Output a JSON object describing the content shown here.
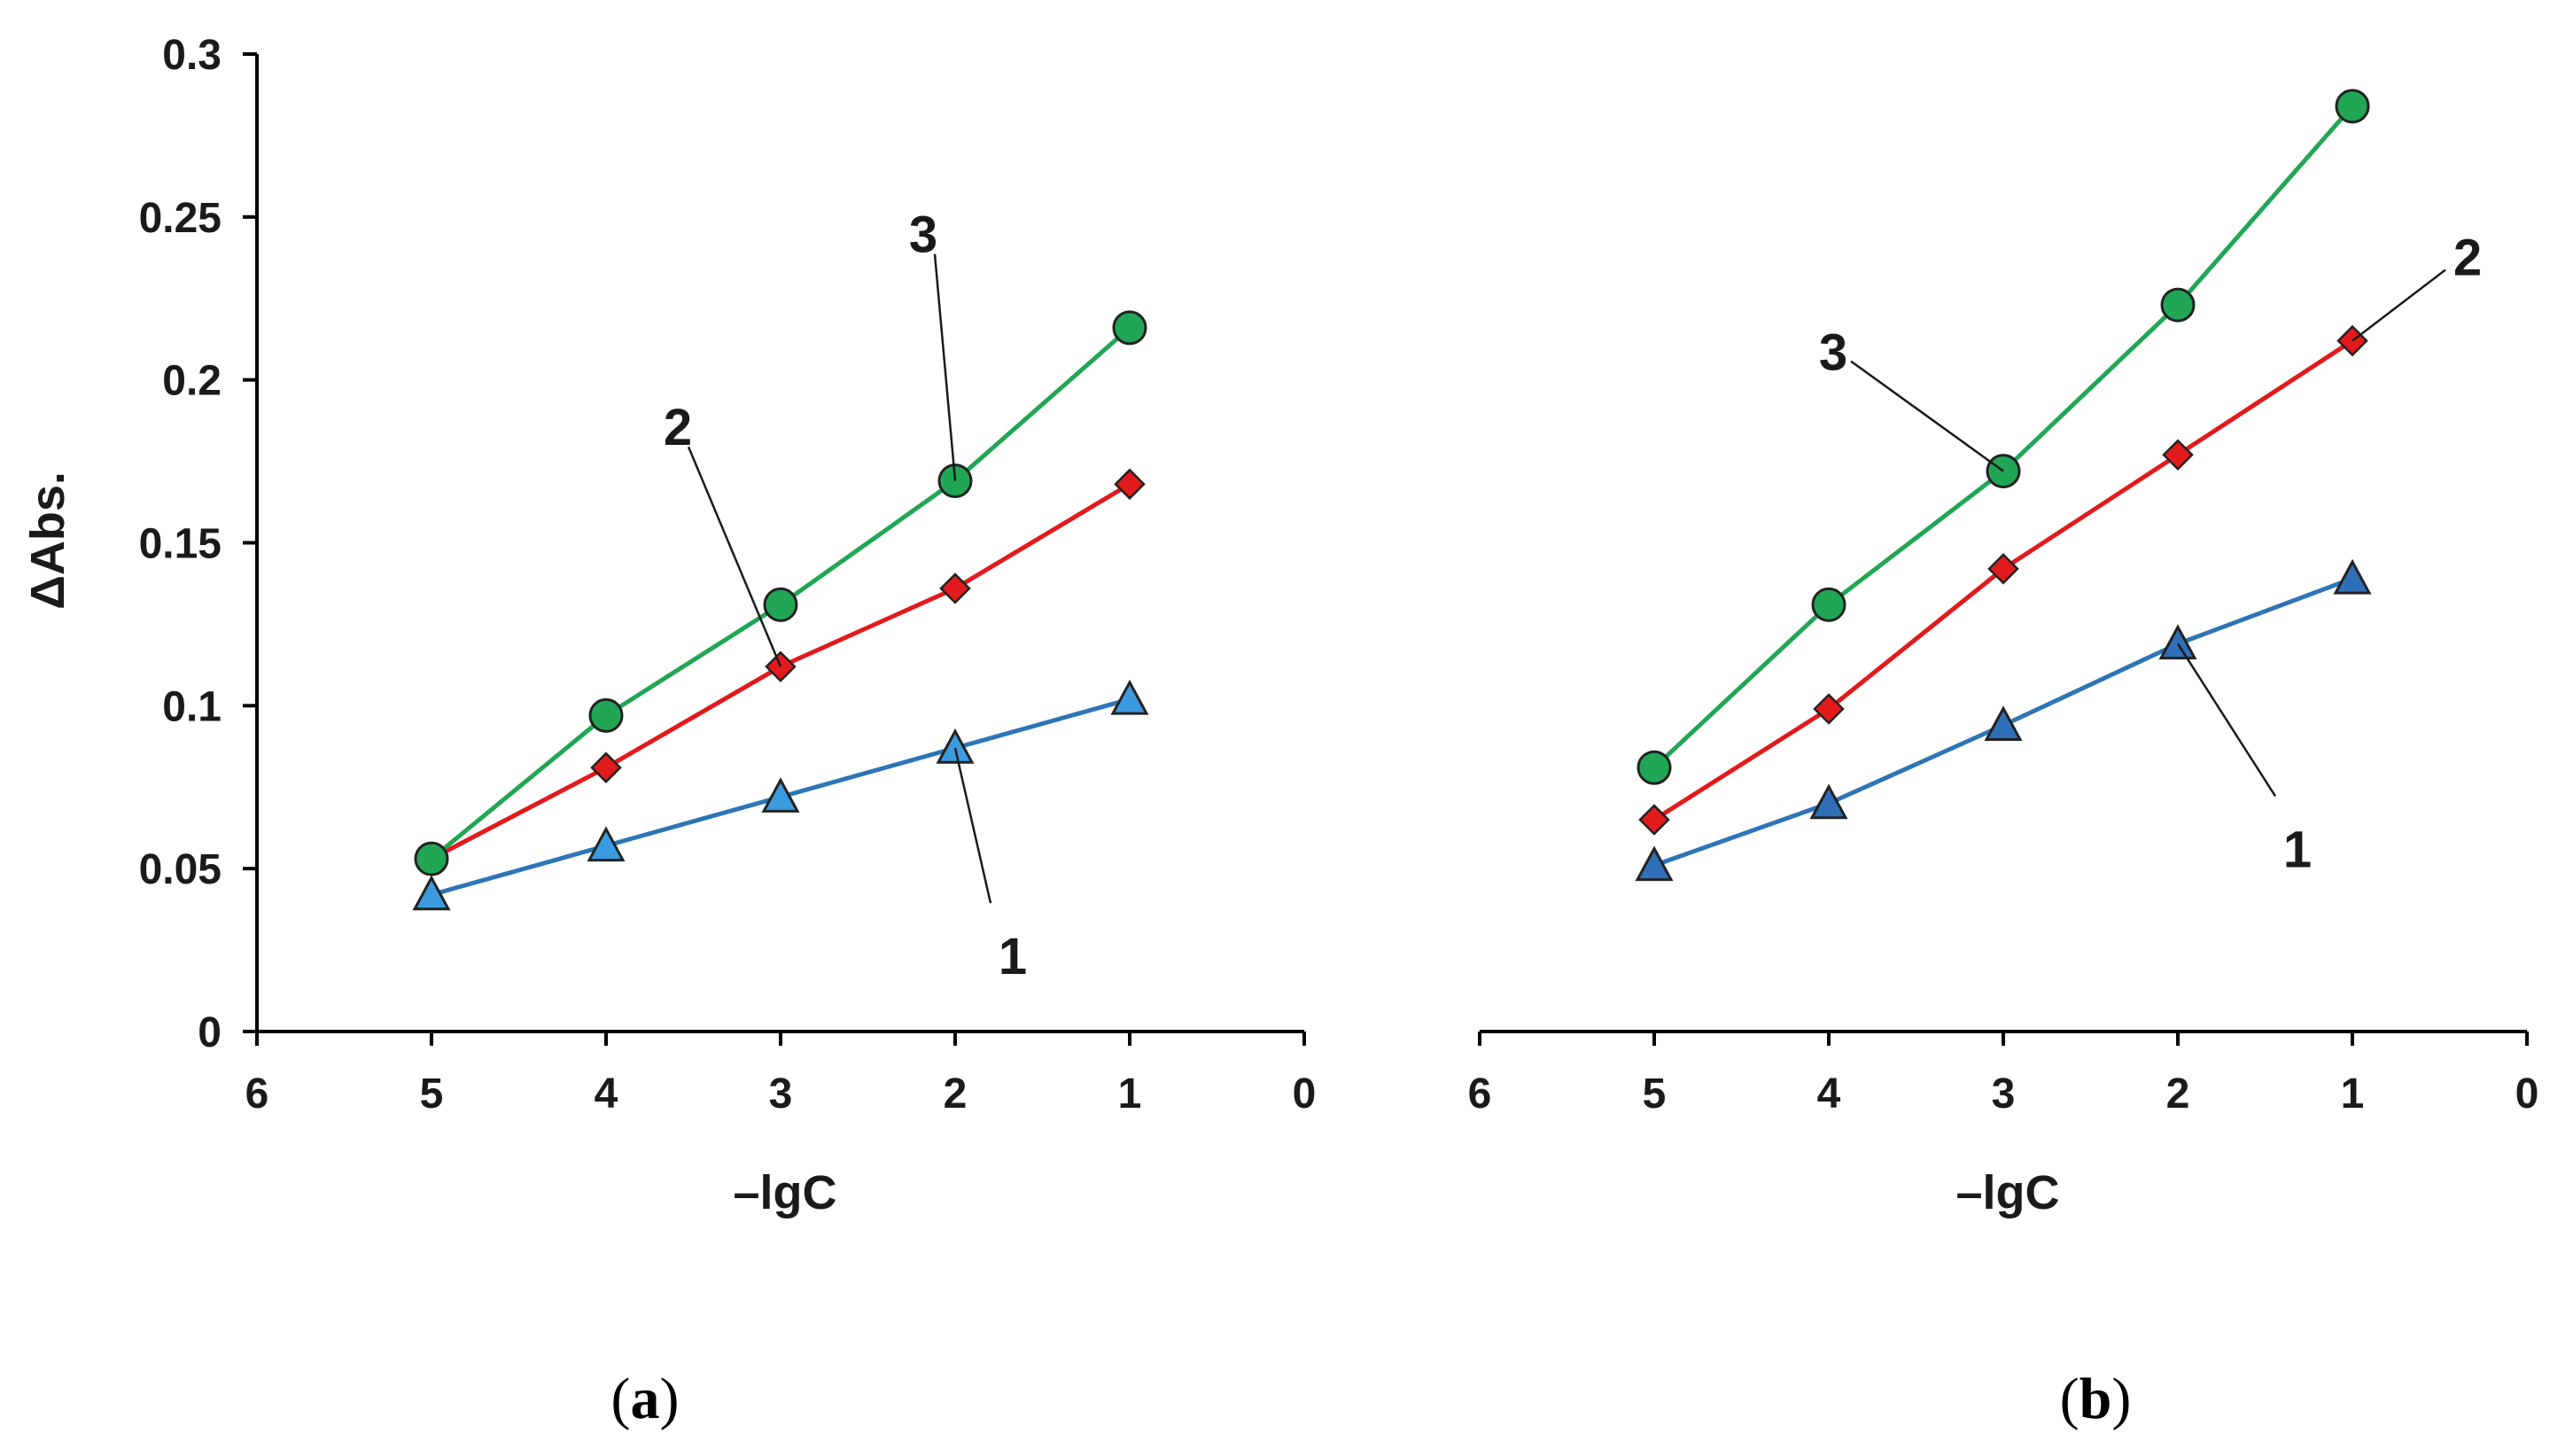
{
  "colors": {
    "series_1_line": "#2e75b6",
    "series_1_marker_a": "#3b9be0",
    "series_1_marker_b": "#2f6fb8",
    "series_2": "#e31a1c",
    "series_3": "#21a655",
    "axis": "#000000",
    "marker_stroke": "#222222"
  },
  "chart_data": [
    {
      "type": "line",
      "panel_label": "a",
      "xlabel": "–lgC",
      "ylabel": "ΔAbs.",
      "xlim": [
        6,
        0
      ],
      "ylim": [
        0,
        0.3
      ],
      "xticks": [
        "6",
        "5",
        "4",
        "3",
        "2",
        "1",
        "0"
      ],
      "yticks": [
        "0",
        "0.05",
        "0.1",
        "0.15",
        "0.2",
        "0.25",
        "0.3"
      ],
      "x": [
        5,
        4,
        3,
        2,
        1
      ],
      "series": [
        {
          "name": "1",
          "marker": "triangle",
          "values": [
            0.042,
            0.057,
            0.072,
            0.087,
            0.102
          ]
        },
        {
          "name": "2",
          "marker": "diamond",
          "values": [
            0.053,
            0.081,
            0.112,
            0.136,
            0.168
          ]
        },
        {
          "name": "3",
          "marker": "circle",
          "values": [
            0.053,
            0.097,
            0.131,
            0.169,
            0.216
          ]
        }
      ],
      "annotations": [
        {
          "text": "1",
          "series": "1",
          "at_x": 2
        },
        {
          "text": "2",
          "series": "2",
          "at_x": 3
        },
        {
          "text": "3",
          "series": "3",
          "at_x": 2
        }
      ]
    },
    {
      "type": "line",
      "panel_label": "b",
      "xlabel": "–lgC",
      "ylabel": "",
      "xlim": [
        6,
        0
      ],
      "ylim": [
        0,
        0.3
      ],
      "xticks": [
        "6",
        "5",
        "4",
        "3",
        "2",
        "1",
        "0"
      ],
      "yticks": [],
      "x": [
        5,
        4,
        3,
        2,
        1
      ],
      "series": [
        {
          "name": "1",
          "marker": "triangle",
          "values": [
            0.051,
            0.07,
            0.094,
            0.119,
            0.139
          ]
        },
        {
          "name": "2",
          "marker": "diamond",
          "values": [
            0.065,
            0.099,
            0.142,
            0.177,
            0.212
          ]
        },
        {
          "name": "3",
          "marker": "circle",
          "values": [
            0.081,
            0.131,
            0.172,
            0.223,
            0.284
          ]
        }
      ],
      "annotations": [
        {
          "text": "1",
          "series": "1",
          "at_x": 2
        },
        {
          "text": "2",
          "series": "2",
          "at_x": 1
        },
        {
          "text": "3",
          "series": "3",
          "at_x": 3
        }
      ]
    }
  ]
}
